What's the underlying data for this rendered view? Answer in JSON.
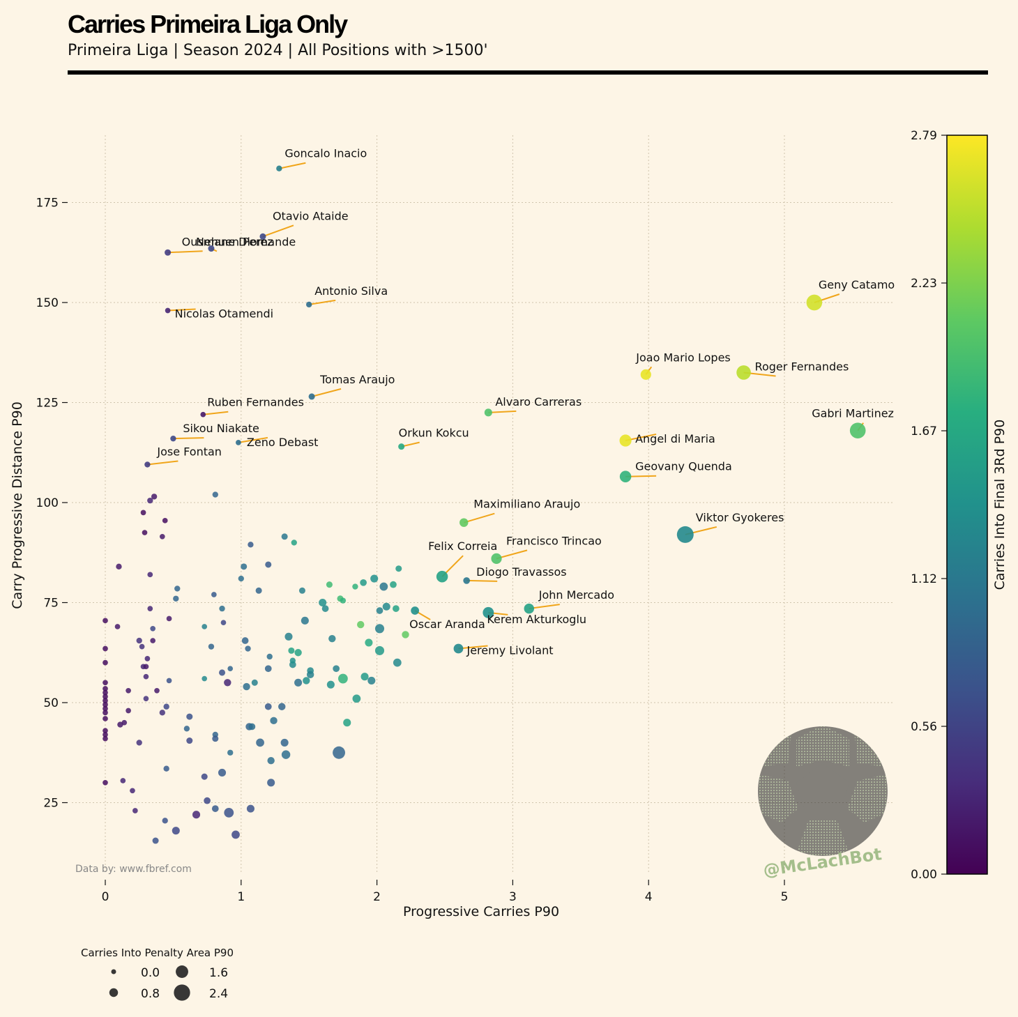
{
  "header": {
    "title": "Carries Primeira Liga Only",
    "subtitle": "Primeira Liga | Season 2024 | All Positions with >1500'"
  },
  "source": "Data by: www.fbref.com",
  "watermark": "@McLachBot",
  "chart_data": {
    "type": "scatter",
    "xlabel": "Progressive Carries P90",
    "ylabel": "Carry Progressive Distance P90",
    "xlim": [
      -0.25,
      5.8
    ],
    "ylim": [
      7,
      197
    ],
    "xticks": [
      0,
      1,
      2,
      3,
      4,
      5
    ],
    "yticks": [
      25,
      50,
      75,
      100,
      125,
      150,
      175
    ],
    "grid": true,
    "colorbar": {
      "label": "Carries Into Final 3Rd P90",
      "range": [
        0.0,
        2.79
      ],
      "ticks": [
        "0.00",
        "0.56",
        "1.12",
        "1.67",
        "2.23",
        "2.79"
      ],
      "colormap": "viridis"
    },
    "size_legend": {
      "title": "Carries Into Penalty Area P90",
      "entries": [
        "0.0",
        "0.8",
        "1.6",
        "2.4"
      ],
      "values": [
        0.0,
        0.8,
        1.6,
        2.4
      ]
    },
    "labeled_points": [
      {
        "name": "Goncalo Inacio",
        "x": 1.28,
        "y": 183.5,
        "c": 1.2,
        "s": 0.2
      },
      {
        "name": "Otavio Ataide",
        "x": 1.16,
        "y": 166.5,
        "c": 0.6,
        "s": 0.3
      },
      {
        "name": "Ousmane Diomande",
        "x": 0.46,
        "y": 162.5,
        "c": 0.5,
        "s": 0.3
      },
      {
        "name": "Nehuen Perez",
        "x": 0.78,
        "y": 163.5,
        "c": 0.6,
        "s": 0.3
      },
      {
        "name": "Antonio Silva",
        "x": 1.5,
        "y": 149.5,
        "c": 1.0,
        "s": 0.2
      },
      {
        "name": "Nicolas Otamendi",
        "x": 0.46,
        "y": 148.0,
        "c": 0.3,
        "s": 0.1
      },
      {
        "name": "Geny Catamo",
        "x": 5.22,
        "y": 150.0,
        "c": 2.6,
        "s": 2.3
      },
      {
        "name": "Joao Mario Lopes",
        "x": 3.98,
        "y": 132.0,
        "c": 2.7,
        "s": 1.2
      },
      {
        "name": "Roger Fernandes",
        "x": 4.7,
        "y": 132.5,
        "c": 2.5,
        "s": 2.0
      },
      {
        "name": "Tomas Araujo",
        "x": 1.52,
        "y": 126.5,
        "c": 1.0,
        "s": 0.3
      },
      {
        "name": "Ruben Fernandes",
        "x": 0.72,
        "y": 122.0,
        "c": 0.2,
        "s": 0.1
      },
      {
        "name": "Alvaro Carreras",
        "x": 2.82,
        "y": 122.5,
        "c": 2.0,
        "s": 0.6
      },
      {
        "name": "Gabri Martinez",
        "x": 5.54,
        "y": 118.0,
        "c": 2.0,
        "s": 2.3
      },
      {
        "name": "Sikou Niakate",
        "x": 0.5,
        "y": 116.0,
        "c": 0.6,
        "s": 0.2
      },
      {
        "name": "Zeno Debast",
        "x": 0.98,
        "y": 115.0,
        "c": 1.0,
        "s": 0.1
      },
      {
        "name": "Orkun Kokcu",
        "x": 2.18,
        "y": 114.0,
        "c": 1.7,
        "s": 0.3
      },
      {
        "name": "Angel di Maria",
        "x": 3.83,
        "y": 115.5,
        "c": 2.7,
        "s": 1.5
      },
      {
        "name": "Jose Fontan",
        "x": 0.31,
        "y": 109.5,
        "c": 0.5,
        "s": 0.2
      },
      {
        "name": "Geovany Quenda",
        "x": 3.83,
        "y": 106.5,
        "c": 1.8,
        "s": 1.4
      },
      {
        "name": "Maximiliano Araujo",
        "x": 2.64,
        "y": 95.0,
        "c": 2.1,
        "s": 0.8
      },
      {
        "name": "Viktor Gyokeres",
        "x": 4.27,
        "y": 92.0,
        "c": 1.3,
        "s": 2.5
      },
      {
        "name": "Francisco Trincao",
        "x": 2.88,
        "y": 86.0,
        "c": 2.0,
        "s": 1.2
      },
      {
        "name": "Felix Correia",
        "x": 2.48,
        "y": 81.5,
        "c": 1.6,
        "s": 1.4
      },
      {
        "name": "Diogo Travassos",
        "x": 2.66,
        "y": 80.5,
        "c": 1.1,
        "s": 0.4
      },
      {
        "name": "John Mercado",
        "x": 3.12,
        "y": 73.5,
        "c": 1.6,
        "s": 1.1
      },
      {
        "name": "Kerem Akturkoglu",
        "x": 2.82,
        "y": 72.5,
        "c": 1.4,
        "s": 1.3
      },
      {
        "name": "Oscar Aranda",
        "x": 2.28,
        "y": 73.0,
        "c": 1.4,
        "s": 0.7
      },
      {
        "name": "Jeremy Livolant",
        "x": 2.6,
        "y": 63.5,
        "c": 1.3,
        "s": 1.0
      }
    ],
    "points": [
      [
        0,
        70.5,
        0.1,
        0.1
      ],
      [
        0,
        63.5,
        0.1,
        0.1
      ],
      [
        0,
        60,
        0.1,
        0.1
      ],
      [
        0,
        55,
        0.1,
        0.1
      ],
      [
        0,
        53.5,
        0.1,
        0.1
      ],
      [
        0,
        52.5,
        0.1,
        0.1
      ],
      [
        0,
        51.5,
        0.1,
        0.1
      ],
      [
        0,
        50.5,
        0.1,
        0.1
      ],
      [
        0,
        49.5,
        0.1,
        0.1
      ],
      [
        0,
        48.5,
        0.1,
        0.1
      ],
      [
        0,
        47.5,
        0.1,
        0.1
      ],
      [
        0,
        46,
        0.1,
        0.1
      ],
      [
        0,
        43,
        0.1,
        0.1
      ],
      [
        0,
        42,
        0.1,
        0.1
      ],
      [
        0,
        41,
        0.1,
        0.1
      ],
      [
        0,
        30,
        0.1,
        0.1
      ],
      [
        0.1,
        84,
        0.2,
        0.2
      ],
      [
        0.09,
        69,
        0.2,
        0.1
      ],
      [
        0.11,
        44.5,
        0.2,
        0.2
      ],
      [
        0.14,
        45,
        0.2,
        0.1
      ],
      [
        0.17,
        53,
        0.2,
        0.1
      ],
      [
        0.17,
        48,
        0.2,
        0.1
      ],
      [
        0.13,
        30.5,
        0.3,
        0.1
      ],
      [
        0.2,
        28,
        0.3,
        0.1
      ],
      [
        0.22,
        23,
        0.3,
        0.1
      ],
      [
        0.25,
        40,
        0.4,
        0.2
      ],
      [
        0.25,
        65.5,
        0.4,
        0.2
      ],
      [
        0.27,
        64,
        0.4,
        0.1
      ],
      [
        0.28,
        59,
        0.3,
        0.1
      ],
      [
        0.3,
        59,
        0.2,
        0.1
      ],
      [
        0.29,
        92.5,
        0.1,
        0.1
      ],
      [
        0.28,
        97.5,
        0.1,
        0.1
      ],
      [
        0.31,
        61,
        0.3,
        0.1
      ],
      [
        0.3,
        56.5,
        0.3,
        0.1
      ],
      [
        0.3,
        51,
        0.4,
        0.1
      ],
      [
        0.33,
        73.5,
        0.3,
        0.1
      ],
      [
        0.33,
        82,
        0.3,
        0.1
      ],
      [
        0.33,
        100.5,
        0.3,
        0.2
      ],
      [
        0.36,
        101.5,
        0.2,
        0.2
      ],
      [
        0.35,
        65.5,
        0.2,
        0.1
      ],
      [
        0.35,
        68.5,
        0.6,
        0.1
      ],
      [
        0.38,
        53,
        0.2,
        0.1
      ],
      [
        0.42,
        91.5,
        0.2,
        0.1
      ],
      [
        0.44,
        95.5,
        0.1,
        0.1
      ],
      [
        0.42,
        47.5,
        0.4,
        0.2
      ],
      [
        0.45,
        49,
        0.6,
        0.2
      ],
      [
        0.47,
        71,
        0.2,
        0.1
      ],
      [
        0.47,
        55.5,
        0.7,
        0.1
      ],
      [
        0.45,
        33.5,
        0.8,
        0.2
      ],
      [
        0.44,
        20.5,
        0.7,
        0.2
      ],
      [
        0.37,
        15.5,
        0.7,
        0.3
      ],
      [
        0.52,
        18,
        0.6,
        0.6
      ],
      [
        0.52,
        76,
        0.9,
        0.2
      ],
      [
        0.53,
        78.5,
        0.9,
        0.2
      ],
      [
        0.62,
        46.5,
        0.7,
        0.3
      ],
      [
        0.6,
        43.5,
        0.9,
        0.2
      ],
      [
        0.62,
        40.5,
        0.6,
        0.3
      ],
      [
        0.67,
        22,
        0.3,
        0.6
      ],
      [
        0.73,
        69,
        1.2,
        0.1
      ],
      [
        0.73,
        56,
        1.3,
        0.1
      ],
      [
        0.73,
        31.5,
        0.6,
        0.3
      ],
      [
        0.75,
        25.5,
        0.6,
        0.4
      ],
      [
        0.78,
        64,
        0.9,
        0.2
      ],
      [
        0.8,
        77,
        0.8,
        0.1
      ],
      [
        0.81,
        42,
        0.9,
        0.2
      ],
      [
        0.81,
        41,
        0.8,
        0.3
      ],
      [
        0.81,
        23.5,
        0.8,
        0.4
      ],
      [
        0.81,
        102,
        0.9,
        0.2
      ],
      [
        0.86,
        73.5,
        1.0,
        0.2
      ],
      [
        0.86,
        57.5,
        0.7,
        0.3
      ],
      [
        0.87,
        70,
        0.6,
        0.1
      ],
      [
        0.86,
        32.5,
        0.8,
        0.6
      ],
      [
        0.9,
        55,
        0.3,
        0.5
      ],
      [
        0.92,
        58.5,
        0.9,
        0.1
      ],
      [
        0.92,
        37.5,
        1.0,
        0.2
      ],
      [
        0.91,
        22.5,
        0.7,
        1.0
      ],
      [
        0.96,
        17,
        0.6,
        0.7
      ],
      [
        1.0,
        81,
        1.0,
        0.2
      ],
      [
        1.02,
        84,
        1.0,
        0.3
      ],
      [
        1.03,
        65.5,
        0.9,
        0.4
      ],
      [
        1.05,
        63.5,
        0.9,
        0.2
      ],
      [
        1.04,
        54,
        1.0,
        0.5
      ],
      [
        1.06,
        44,
        0.9,
        0.5
      ],
      [
        1.08,
        44,
        1.0,
        0.4
      ],
      [
        1.1,
        55,
        1.2,
        0.3
      ],
      [
        1.07,
        89.5,
        0.8,
        0.2
      ],
      [
        1.13,
        78,
        0.9,
        0.3
      ],
      [
        1.14,
        40,
        0.9,
        0.7
      ],
      [
        1.07,
        23.5,
        0.7,
        0.6
      ],
      [
        1.2,
        84.5,
        0.8,
        0.3
      ],
      [
        1.21,
        61.5,
        1.0,
        0.2
      ],
      [
        1.2,
        58.5,
        0.9,
        0.4
      ],
      [
        1.2,
        49,
        0.8,
        0.4
      ],
      [
        1.24,
        45.5,
        1.0,
        0.5
      ],
      [
        1.22,
        35.5,
        1.0,
        0.5
      ],
      [
        1.22,
        30,
        0.8,
        0.6
      ],
      [
        1.3,
        49,
        0.9,
        0.5
      ],
      [
        1.32,
        40,
        0.9,
        0.6
      ],
      [
        1.33,
        37,
        1.0,
        0.8
      ],
      [
        1.32,
        91.5,
        1.1,
        0.3
      ],
      [
        1.39,
        90,
        1.6,
        0.2
      ],
      [
        1.35,
        66.5,
        1.2,
        0.6
      ],
      [
        1.37,
        63,
        1.6,
        0.3
      ],
      [
        1.38,
        59.5,
        1.3,
        0.4
      ],
      [
        1.38,
        60.5,
        1.4,
        0.2
      ],
      [
        1.42,
        62.5,
        1.6,
        0.5
      ],
      [
        1.42,
        55,
        1.0,
        0.6
      ],
      [
        1.45,
        78,
        1.2,
        0.3
      ],
      [
        1.47,
        70.5,
        1.1,
        0.6
      ],
      [
        1.48,
        55.5,
        1.4,
        0.5
      ],
      [
        1.51,
        58,
        1.3,
        0.4
      ],
      [
        1.51,
        57,
        1.2,
        0.5
      ],
      [
        1.6,
        75,
        1.4,
        0.6
      ],
      [
        1.62,
        73.5,
        1.3,
        0.4
      ],
      [
        1.65,
        79.5,
        1.9,
        0.3
      ],
      [
        1.67,
        66,
        1.2,
        0.5
      ],
      [
        1.66,
        54.5,
        1.4,
        0.6
      ],
      [
        1.7,
        58.5,
        1.2,
        0.4
      ],
      [
        1.73,
        76,
        1.9,
        0.3
      ],
      [
        1.75,
        75.5,
        1.8,
        0.2
      ],
      [
        1.75,
        56,
        1.8,
        1.0
      ],
      [
        1.72,
        37.5,
        0.9,
        1.6
      ],
      [
        1.78,
        45,
        1.6,
        0.6
      ],
      [
        1.84,
        79,
        1.8,
        0.2
      ],
      [
        1.85,
        51,
        1.5,
        0.7
      ],
      [
        1.88,
        69.5,
        2.1,
        0.5
      ],
      [
        1.9,
        80,
        1.5,
        0.4
      ],
      [
        1.91,
        56.5,
        1.5,
        0.6
      ],
      [
        1.94,
        65,
        1.7,
        0.6
      ],
      [
        1.96,
        55.5,
        1.2,
        0.6
      ],
      [
        1.98,
        81,
        1.4,
        0.6
      ],
      [
        2.02,
        73,
        1.2,
        0.4
      ],
      [
        2.02,
        68.5,
        1.2,
        0.9
      ],
      [
        2.02,
        63,
        1.5,
        0.9
      ],
      [
        2.05,
        79,
        1.1,
        0.7
      ],
      [
        2.07,
        74,
        1.3,
        0.6
      ],
      [
        2.12,
        79.5,
        1.6,
        0.4
      ],
      [
        2.14,
        73.5,
        1.6,
        0.4
      ],
      [
        2.15,
        60,
        1.3,
        0.7
      ],
      [
        2.16,
        83.5,
        1.5,
        0.3
      ],
      [
        2.21,
        67,
        2.1,
        0.5
      ]
    ]
  }
}
